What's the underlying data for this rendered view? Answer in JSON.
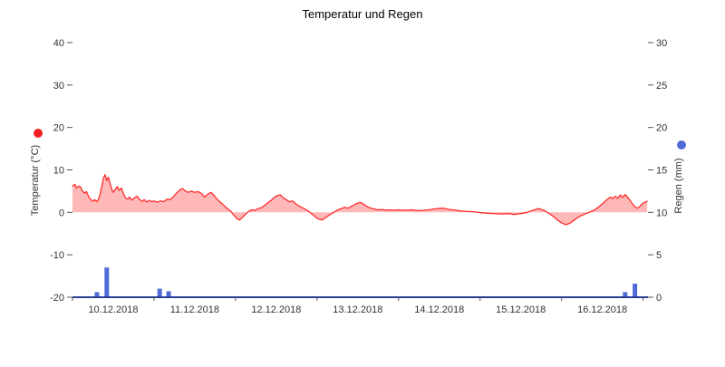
{
  "chart_data": {
    "type": "line+bar",
    "title": "Temperatur und Regen",
    "x_axis": {
      "labels": [
        "10.12.2018",
        "11.12.2018",
        "12.12.2018",
        "13.12.2018",
        "14.12.2018",
        "15.12.2018",
        "16.12.2018"
      ],
      "range_days": [
        0,
        7.06
      ]
    },
    "y_left": {
      "title": "Temperatur (°C)",
      "min": -20,
      "max": 40,
      "ticks": [
        -20,
        -10,
        0,
        10,
        20,
        30,
        40
      ]
    },
    "y_right": {
      "title": "Regen (mm)",
      "min": 0,
      "max": 30,
      "ticks": [
        0,
        5,
        10,
        15,
        20,
        25,
        30
      ]
    },
    "legend": {
      "temperature_dot_color": "#ee2222",
      "rain_dot_color": "#4f6bd5"
    },
    "baseline_color": "#2b3e94",
    "tick_color": "#555555",
    "series": [
      {
        "name": "Temperatur",
        "type": "line",
        "color": "#ff2d2d",
        "fill": "#ff7d7d",
        "fill_opacity": 0.55,
        "points": [
          [
            0.0,
            6.2
          ],
          [
            0.03,
            6.6
          ],
          [
            0.05,
            5.7
          ],
          [
            0.08,
            6.2
          ],
          [
            0.1,
            5.9
          ],
          [
            0.12,
            5.1
          ],
          [
            0.15,
            4.5
          ],
          [
            0.17,
            4.9
          ],
          [
            0.2,
            3.6
          ],
          [
            0.22,
            3.1
          ],
          [
            0.25,
            2.6
          ],
          [
            0.27,
            3.0
          ],
          [
            0.3,
            2.5
          ],
          [
            0.33,
            3.6
          ],
          [
            0.36,
            6.2
          ],
          [
            0.38,
            8.1
          ],
          [
            0.4,
            8.9
          ],
          [
            0.42,
            7.5
          ],
          [
            0.44,
            8.3
          ],
          [
            0.46,
            6.9
          ],
          [
            0.48,
            5.5
          ],
          [
            0.5,
            4.7
          ],
          [
            0.52,
            5.3
          ],
          [
            0.55,
            6.1
          ],
          [
            0.57,
            5.2
          ],
          [
            0.6,
            5.7
          ],
          [
            0.62,
            4.6
          ],
          [
            0.65,
            3.4
          ],
          [
            0.68,
            3.1
          ],
          [
            0.7,
            3.6
          ],
          [
            0.73,
            2.9
          ],
          [
            0.76,
            3.4
          ],
          [
            0.79,
            3.8
          ],
          [
            0.82,
            3.1
          ],
          [
            0.85,
            2.6
          ],
          [
            0.88,
            3.0
          ],
          [
            0.91,
            2.4
          ],
          [
            0.94,
            2.8
          ],
          [
            0.97,
            2.5
          ],
          [
            1.0,
            2.7
          ],
          [
            1.04,
            2.4
          ],
          [
            1.08,
            2.7
          ],
          [
            1.12,
            2.5
          ],
          [
            1.16,
            3.1
          ],
          [
            1.2,
            3.0
          ],
          [
            1.24,
            3.7
          ],
          [
            1.28,
            4.6
          ],
          [
            1.32,
            5.3
          ],
          [
            1.35,
            5.6
          ],
          [
            1.38,
            5.1
          ],
          [
            1.42,
            4.7
          ],
          [
            1.46,
            5.0
          ],
          [
            1.5,
            4.7
          ],
          [
            1.54,
            4.9
          ],
          [
            1.58,
            4.5
          ],
          [
            1.62,
            3.6
          ],
          [
            1.66,
            4.3
          ],
          [
            1.7,
            4.7
          ],
          [
            1.74,
            3.9
          ],
          [
            1.78,
            3.0
          ],
          [
            1.82,
            2.3
          ],
          [
            1.86,
            1.6
          ],
          [
            1.9,
            0.9
          ],
          [
            1.94,
            0.3
          ],
          [
            1.98,
            -0.7
          ],
          [
            2.02,
            -1.5
          ],
          [
            2.05,
            -1.8
          ],
          [
            2.08,
            -1.3
          ],
          [
            2.12,
            -0.5
          ],
          [
            2.16,
            0.2
          ],
          [
            2.2,
            0.6
          ],
          [
            2.24,
            0.5
          ],
          [
            2.28,
            0.9
          ],
          [
            2.32,
            1.1
          ],
          [
            2.36,
            1.7
          ],
          [
            2.4,
            2.3
          ],
          [
            2.44,
            2.9
          ],
          [
            2.48,
            3.6
          ],
          [
            2.52,
            4.0
          ],
          [
            2.55,
            4.1
          ],
          [
            2.58,
            3.5
          ],
          [
            2.62,
            3.0
          ],
          [
            2.66,
            2.5
          ],
          [
            2.7,
            2.7
          ],
          [
            2.74,
            2.0
          ],
          [
            2.78,
            1.5
          ],
          [
            2.82,
            1.1
          ],
          [
            2.86,
            0.7
          ],
          [
            2.9,
            0.2
          ],
          [
            2.94,
            -0.4
          ],
          [
            2.98,
            -1.1
          ],
          [
            3.02,
            -1.6
          ],
          [
            3.06,
            -1.8
          ],
          [
            3.1,
            -1.3
          ],
          [
            3.14,
            -0.8
          ],
          [
            3.18,
            -0.3
          ],
          [
            3.22,
            0.2
          ],
          [
            3.26,
            0.6
          ],
          [
            3.3,
            0.9
          ],
          [
            3.34,
            1.2
          ],
          [
            3.38,
            1.0
          ],
          [
            3.42,
            1.4
          ],
          [
            3.46,
            1.8
          ],
          [
            3.5,
            2.2
          ],
          [
            3.54,
            2.3
          ],
          [
            3.58,
            1.8
          ],
          [
            3.62,
            1.3
          ],
          [
            3.66,
            1.0
          ],
          [
            3.7,
            0.8
          ],
          [
            3.75,
            0.6
          ],
          [
            3.8,
            0.7
          ],
          [
            3.85,
            0.5
          ],
          [
            3.9,
            0.6
          ],
          [
            3.95,
            0.5
          ],
          [
            4.0,
            0.6
          ],
          [
            4.08,
            0.5
          ],
          [
            4.16,
            0.6
          ],
          [
            4.24,
            0.4
          ],
          [
            4.32,
            0.5
          ],
          [
            4.4,
            0.7
          ],
          [
            4.48,
            0.9
          ],
          [
            4.55,
            1.0
          ],
          [
            4.62,
            0.7
          ],
          [
            4.7,
            0.5
          ],
          [
            4.78,
            0.3
          ],
          [
            4.86,
            0.2
          ],
          [
            4.94,
            0.1
          ],
          [
            5.02,
            -0.1
          ],
          [
            5.1,
            -0.2
          ],
          [
            5.18,
            -0.3
          ],
          [
            5.26,
            -0.4
          ],
          [
            5.34,
            -0.3
          ],
          [
            5.42,
            -0.5
          ],
          [
            5.5,
            -0.3
          ],
          [
            5.58,
            0.0
          ],
          [
            5.65,
            0.5
          ],
          [
            5.72,
            0.9
          ],
          [
            5.79,
            0.4
          ],
          [
            5.85,
            -0.3
          ],
          [
            5.9,
            -1.0
          ],
          [
            5.95,
            -1.8
          ],
          [
            6.0,
            -2.5
          ],
          [
            6.05,
            -2.9
          ],
          [
            6.1,
            -2.6
          ],
          [
            6.15,
            -1.9
          ],
          [
            6.2,
            -1.2
          ],
          [
            6.25,
            -0.7
          ],
          [
            6.3,
            -0.3
          ],
          [
            6.35,
            0.1
          ],
          [
            6.4,
            0.5
          ],
          [
            6.45,
            1.2
          ],
          [
            6.5,
            2.0
          ],
          [
            6.55,
            2.9
          ],
          [
            6.6,
            3.6
          ],
          [
            6.63,
            3.2
          ],
          [
            6.66,
            3.8
          ],
          [
            6.69,
            3.3
          ],
          [
            6.72,
            4.1
          ],
          [
            6.75,
            3.5
          ],
          [
            6.78,
            4.2
          ],
          [
            6.81,
            3.6
          ],
          [
            6.84,
            2.8
          ],
          [
            6.87,
            2.0
          ],
          [
            6.9,
            1.3
          ],
          [
            6.93,
            1.0
          ],
          [
            6.96,
            1.4
          ],
          [
            6.99,
            2.0
          ],
          [
            7.02,
            2.4
          ],
          [
            7.05,
            2.6
          ]
        ]
      },
      {
        "name": "Regen",
        "type": "bar",
        "color": "#4f6bd5",
        "bars": [
          [
            0.3,
            0.6
          ],
          [
            0.42,
            3.5
          ],
          [
            1.07,
            1.0
          ],
          [
            1.18,
            0.7
          ],
          [
            6.78,
            0.6
          ],
          [
            6.9,
            1.6
          ]
        ]
      }
    ]
  }
}
